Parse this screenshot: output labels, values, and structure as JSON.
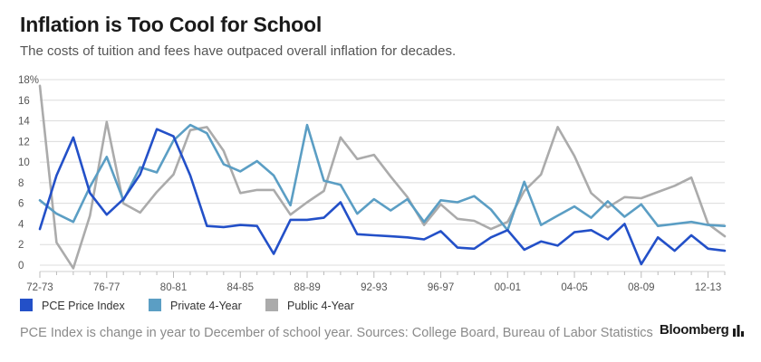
{
  "header": {
    "title": "Inflation is Too Cool for School",
    "subtitle": "The costs of tuition and fees have outpaced overall inflation for decades."
  },
  "footer": {
    "note": "PCE Index is change in year to December of school year. Sources: College Board, Bureau of Labor Statistics",
    "brand": "Bloomberg"
  },
  "colors": {
    "pce": "#2350c8",
    "private": "#5b9ec4",
    "public": "#ababab",
    "grid": "#dcdcdc"
  },
  "chart_data": {
    "type": "line",
    "title": "Inflation is Too Cool for School",
    "xlabel": "",
    "ylabel": "",
    "ylim": [
      0,
      18
    ],
    "yticks": [
      0,
      2,
      4,
      6,
      8,
      10,
      12,
      14,
      16,
      18
    ],
    "ytick_labels": [
      "0",
      "2",
      "4",
      "6",
      "8",
      "10",
      "12",
      "14",
      "16",
      "18%"
    ],
    "x": [
      "72-73",
      "73-74",
      "74-75",
      "75-76",
      "76-77",
      "77-78",
      "78-79",
      "79-80",
      "80-81",
      "81-82",
      "82-83",
      "83-84",
      "84-85",
      "85-86",
      "86-87",
      "87-88",
      "88-89",
      "89-90",
      "90-91",
      "91-92",
      "92-93",
      "93-94",
      "94-95",
      "95-96",
      "96-97",
      "97-98",
      "98-99",
      "99-00",
      "00-01",
      "01-02",
      "02-03",
      "03-04",
      "04-05",
      "05-06",
      "06-07",
      "07-08",
      "08-09",
      "09-10",
      "10-11",
      "11-12",
      "12-13",
      "13-14"
    ],
    "xtick_labels": [
      "72-73",
      "76-77",
      "80-81",
      "84-85",
      "88-89",
      "92-93",
      "96-97",
      "00-01",
      "04-05",
      "08-09",
      "12-13"
    ],
    "grid": true,
    "legend_position": "bottom-left",
    "series": [
      {
        "name": "PCE Price Index",
        "values": [
          3.5,
          8.7,
          12.4,
          7.0,
          4.9,
          6.4,
          8.8,
          13.2,
          12.5,
          8.7,
          3.8,
          3.7,
          3.9,
          3.8,
          1.1,
          4.4,
          4.4,
          4.6,
          6.1,
          3.0,
          2.9,
          2.8,
          2.7,
          2.5,
          3.3,
          1.7,
          1.6,
          2.7,
          3.4,
          1.5,
          2.3,
          1.9,
          3.2,
          3.4,
          2.5,
          4.0,
          0.1,
          2.7,
          1.4,
          2.9,
          1.6,
          1.4
        ]
      },
      {
        "name": "Private 4-Year",
        "values": [
          6.3,
          5.0,
          4.2,
          7.6,
          10.5,
          6.3,
          9.5,
          9.0,
          12.1,
          13.6,
          12.8,
          9.8,
          9.1,
          10.1,
          8.7,
          5.8,
          13.6,
          8.2,
          7.8,
          5.0,
          6.4,
          5.3,
          6.4,
          4.2,
          6.3,
          6.1,
          6.7,
          5.4,
          3.4,
          8.1,
          3.9,
          4.8,
          5.7,
          4.6,
          6.2,
          4.7,
          5.9,
          3.8,
          4.0,
          4.2,
          3.9,
          3.8
        ]
      },
      {
        "name": "Public 4-Year",
        "values": [
          17.4,
          2.2,
          -0.3,
          4.8,
          13.9,
          6.0,
          5.1,
          7.1,
          8.8,
          13.1,
          13.4,
          11.1,
          7.0,
          7.3,
          7.3,
          4.9,
          6.1,
          7.2,
          12.4,
          10.3,
          10.7,
          8.6,
          6.6,
          3.9,
          5.9,
          4.5,
          4.3,
          3.5,
          4.2,
          7.2,
          8.8,
          13.4,
          10.6,
          7.0,
          5.6,
          6.6,
          6.5,
          7.1,
          7.7,
          8.5,
          4.0,
          2.8
        ]
      }
    ]
  }
}
